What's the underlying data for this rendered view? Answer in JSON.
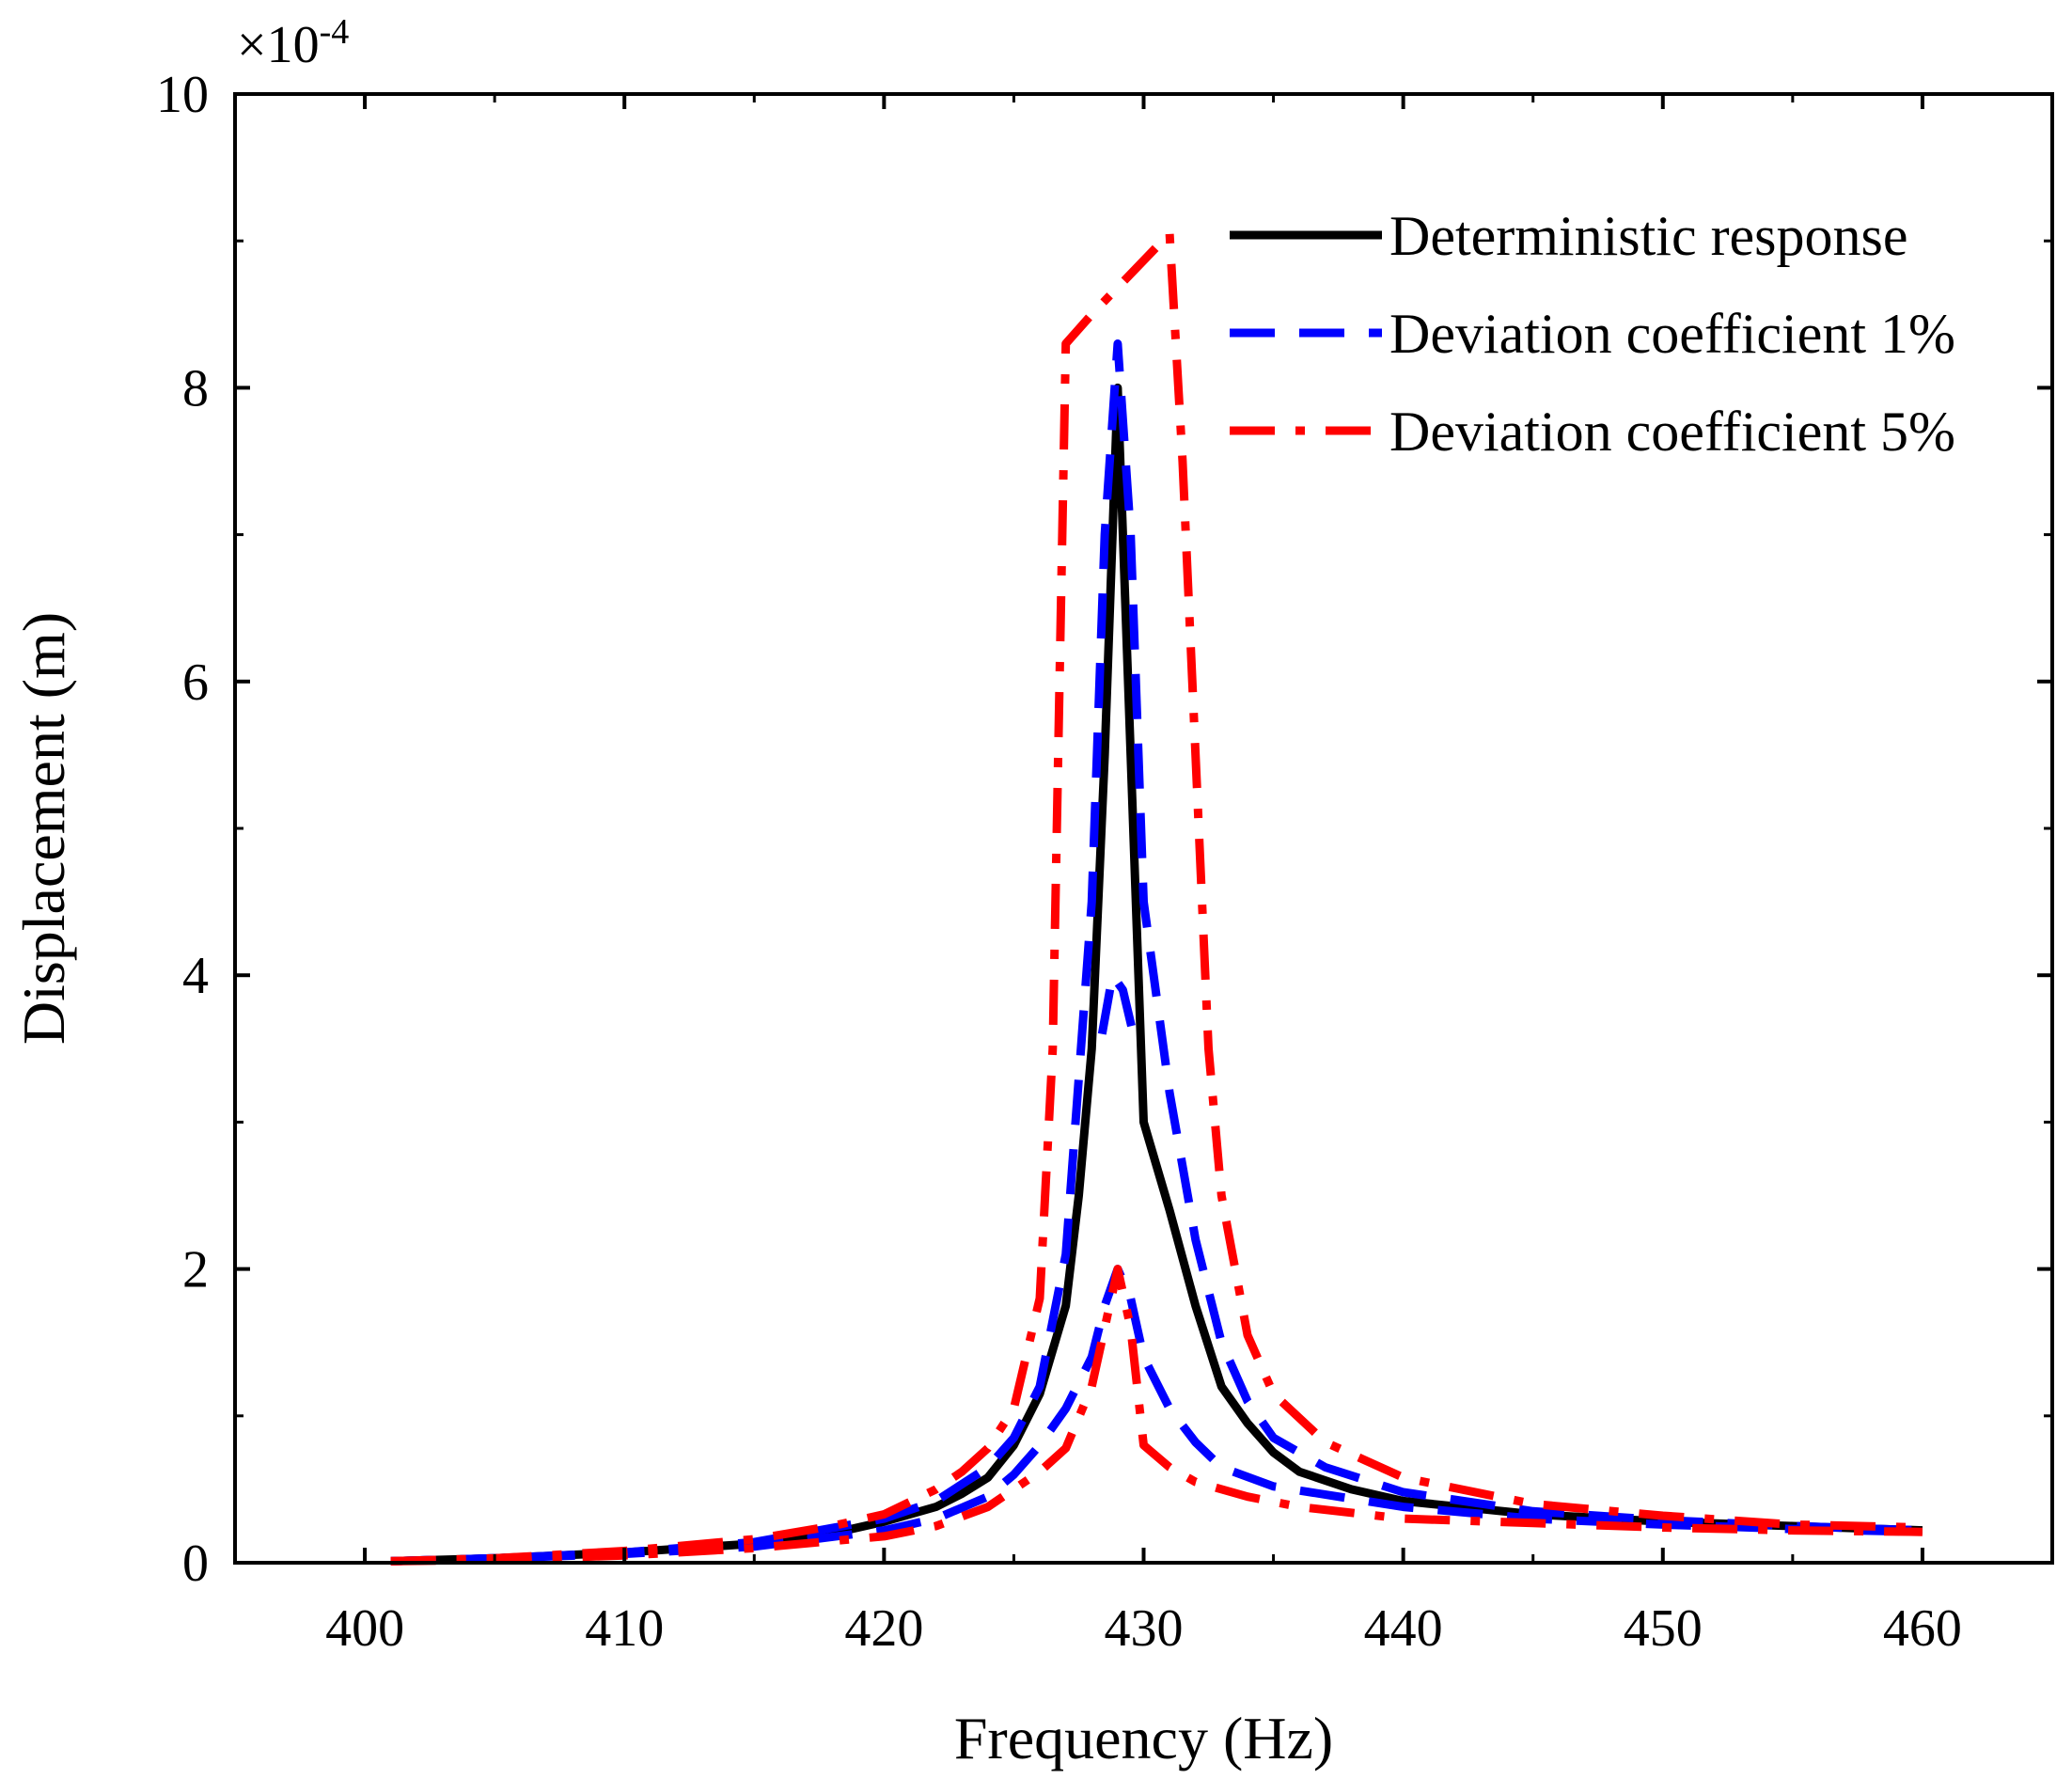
{
  "chart_data": {
    "type": "line",
    "xlabel": "Frequency (Hz)",
    "ylabel": "Displacement (m)",
    "y_multiplier": "×10",
    "y_multiplier_exp": "-4",
    "xlim": [
      395,
      465
    ],
    "ylim": [
      0,
      10
    ],
    "x_ticks": [
      400,
      410,
      420,
      430,
      440,
      450,
      460
    ],
    "y_ticks": [
      0,
      2,
      4,
      6,
      8,
      10
    ],
    "grid": false,
    "legend_position": "top-right",
    "series": [
      {
        "name": "Deterministic response",
        "color": "#000000",
        "style": "solid",
        "points": [
          [
            401,
            0.01
          ],
          [
            405,
            0.03
          ],
          [
            410,
            0.07
          ],
          [
            415,
            0.13
          ],
          [
            418,
            0.2
          ],
          [
            420,
            0.28
          ],
          [
            422,
            0.38
          ],
          [
            423,
            0.47
          ],
          [
            424,
            0.58
          ],
          [
            425,
            0.8
          ],
          [
            426,
            1.15
          ],
          [
            427,
            1.75
          ],
          [
            427.5,
            2.5
          ],
          [
            428,
            3.5
          ],
          [
            428.5,
            5.5
          ],
          [
            429,
            8.0
          ],
          [
            429.5,
            5.5
          ],
          [
            430,
            3.0
          ],
          [
            431,
            2.4
          ],
          [
            432,
            1.75
          ],
          [
            433,
            1.2
          ],
          [
            434,
            0.95
          ],
          [
            435,
            0.75
          ],
          [
            436,
            0.62
          ],
          [
            438,
            0.5
          ],
          [
            440,
            0.42
          ],
          [
            445,
            0.33
          ],
          [
            450,
            0.28
          ],
          [
            455,
            0.25
          ],
          [
            460,
            0.22
          ]
        ]
      },
      {
        "name": "Deviation coefficient 1%",
        "color": "#0000ff",
        "style": "dashed",
        "points": [
          [
            401,
            0.01
          ],
          [
            405,
            0.03
          ],
          [
            410,
            0.07
          ],
          [
            415,
            0.14
          ],
          [
            420,
            0.3
          ],
          [
            422,
            0.42
          ],
          [
            424,
            0.65
          ],
          [
            425,
            0.85
          ],
          [
            426,
            1.2
          ],
          [
            427,
            2.1
          ],
          [
            428,
            4.5
          ],
          [
            428.5,
            7.0
          ],
          [
            429,
            8.3
          ],
          [
            429.5,
            7.0
          ],
          [
            430,
            4.5
          ],
          [
            431,
            3.2
          ],
          [
            432,
            2.2
          ],
          [
            433,
            1.5
          ],
          [
            434,
            1.1
          ],
          [
            435,
            0.85
          ],
          [
            437,
            0.65
          ],
          [
            440,
            0.48
          ],
          [
            445,
            0.35
          ],
          [
            450,
            0.29
          ],
          [
            455,
            0.25
          ],
          [
            460,
            0.22
          ]
        ]
      },
      {
        "name": "Deviation coefficient 1%",
        "color": "#0000ff",
        "style": "dashed",
        "points": [
          [
            401,
            0.01
          ],
          [
            405,
            0.03
          ],
          [
            410,
            0.06
          ],
          [
            415,
            0.11
          ],
          [
            420,
            0.22
          ],
          [
            422,
            0.3
          ],
          [
            424,
            0.45
          ],
          [
            425,
            0.6
          ],
          [
            426,
            0.8
          ],
          [
            427,
            1.05
          ],
          [
            428,
            1.4
          ],
          [
            428.5,
            1.75
          ],
          [
            429,
            2.0
          ],
          [
            429.5,
            1.8
          ],
          [
            430,
            1.4
          ],
          [
            431,
            1.05
          ],
          [
            432,
            0.82
          ],
          [
            433,
            0.65
          ],
          [
            435,
            0.52
          ],
          [
            440,
            0.38
          ],
          [
            445,
            0.3
          ],
          [
            450,
            0.26
          ],
          [
            455,
            0.23
          ],
          [
            460,
            0.21
          ]
        ]
      },
      {
        "name": "Deviation coefficient 1%",
        "color": "#0000ff",
        "style": "dashed",
        "points": [
          [
            428.4,
            3.6
          ],
          [
            428.8,
            4.0
          ],
          [
            429.2,
            3.9
          ],
          [
            429.6,
            3.6
          ]
        ]
      },
      {
        "name": "Deviation coefficient 5%",
        "color": "#ff0000",
        "style": "dashdot",
        "points": [
          [
            401,
            0.01
          ],
          [
            405,
            0.03
          ],
          [
            410,
            0.08
          ],
          [
            415,
            0.16
          ],
          [
            418,
            0.25
          ],
          [
            420,
            0.33
          ],
          [
            422,
            0.5
          ],
          [
            423,
            0.62
          ],
          [
            424,
            0.78
          ],
          [
            425,
            1.05
          ],
          [
            426,
            1.8
          ],
          [
            426.5,
            3.5
          ],
          [
            427,
            8.3
          ],
          [
            428,
            8.5
          ],
          [
            431,
            9.05
          ],
          [
            431.5,
            7.5
          ],
          [
            432,
            5.5
          ],
          [
            432.5,
            3.5
          ],
          [
            433,
            2.5
          ],
          [
            434,
            1.55
          ],
          [
            435,
            1.15
          ],
          [
            437,
            0.82
          ],
          [
            440,
            0.58
          ],
          [
            445,
            0.4
          ],
          [
            450,
            0.32
          ],
          [
            455,
            0.26
          ],
          [
            460,
            0.24
          ]
        ]
      },
      {
        "name": "Deviation coefficient 5%",
        "color": "#ff0000",
        "style": "dashdot",
        "points": [
          [
            401,
            0.01
          ],
          [
            405,
            0.02
          ],
          [
            410,
            0.05
          ],
          [
            415,
            0.1
          ],
          [
            420,
            0.18
          ],
          [
            422,
            0.25
          ],
          [
            424,
            0.38
          ],
          [
            425,
            0.5
          ],
          [
            426,
            0.62
          ],
          [
            427,
            0.78
          ],
          [
            428,
            1.2
          ],
          [
            428.5,
            1.6
          ],
          [
            429,
            2.0
          ],
          [
            429.5,
            1.6
          ],
          [
            430,
            0.8
          ],
          [
            431,
            0.65
          ],
          [
            432,
            0.55
          ],
          [
            434,
            0.45
          ],
          [
            436,
            0.38
          ],
          [
            440,
            0.3
          ],
          [
            445,
            0.27
          ],
          [
            450,
            0.24
          ],
          [
            455,
            0.22
          ],
          [
            460,
            0.21
          ]
        ]
      }
    ],
    "legend": [
      {
        "label": "Deterministic response",
        "color": "#000000",
        "style": "solid"
      },
      {
        "label": "Deviation coefficient 1%",
        "color": "#0000ff",
        "style": "dashed"
      },
      {
        "label": "Deviation coefficient 5%",
        "color": "#ff0000",
        "style": "dashdot"
      }
    ]
  }
}
